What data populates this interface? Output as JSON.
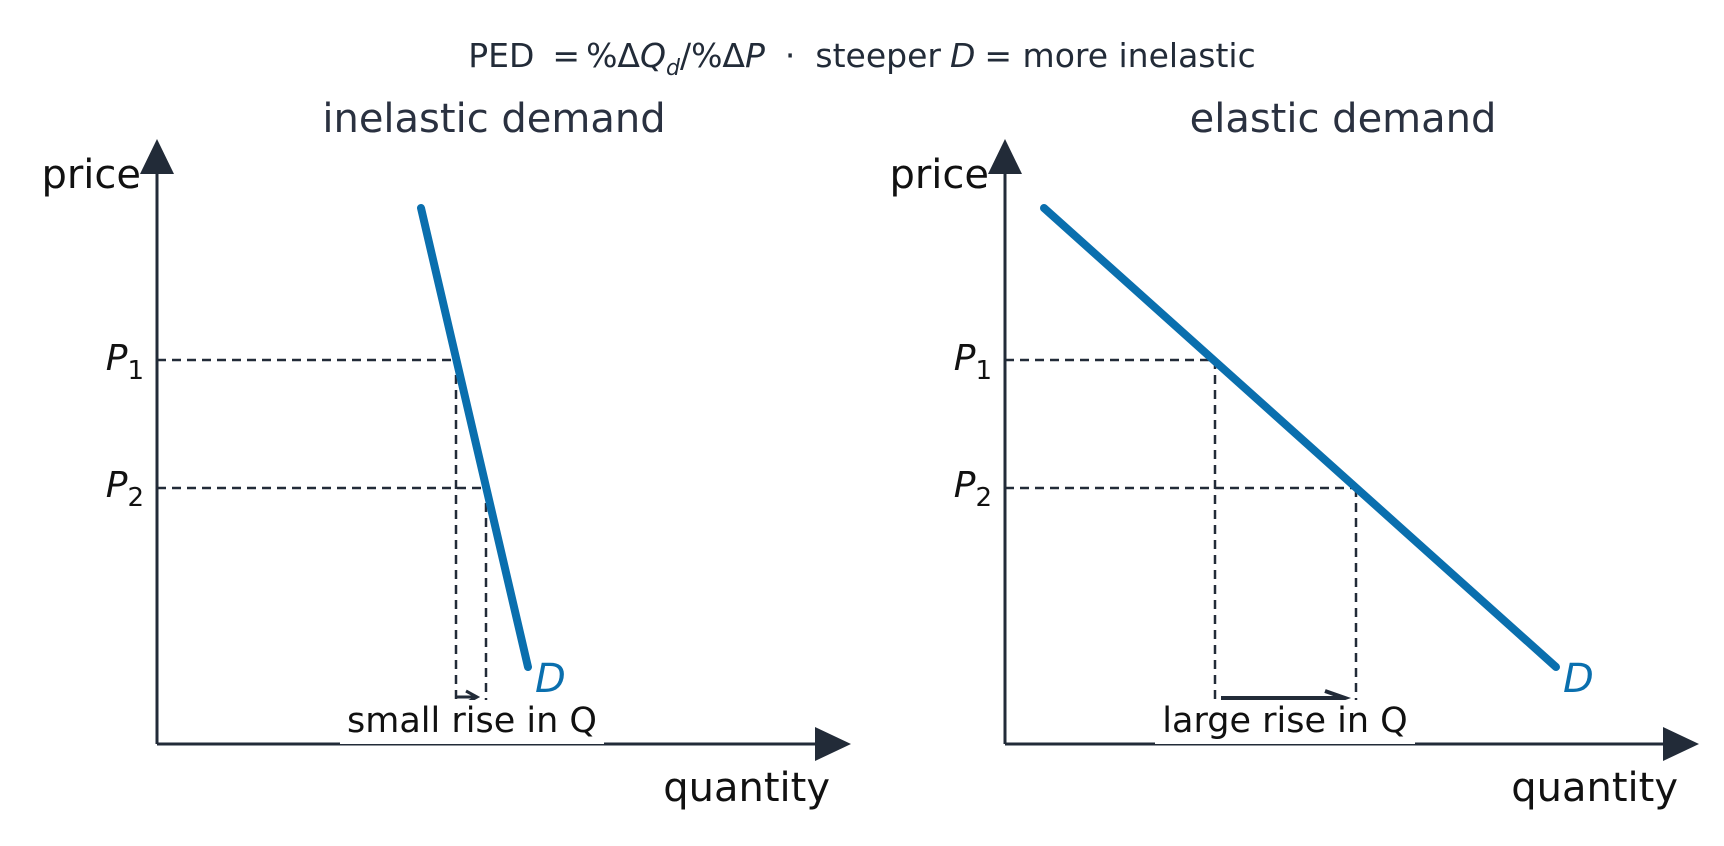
{
  "header": {
    "ped_label": "PED",
    "ped_eq": "=",
    "formula_pct1": "%Δ",
    "formula_q": "Q",
    "formula_sub": "d",
    "formula_slash": "/%Δ",
    "formula_p": "P",
    "separator": "·",
    "tail_steeper": "steeper",
    "tail_d": "D",
    "tail_rest": "= more inelastic"
  },
  "panels": [
    {
      "title": "inelastic demand",
      "y_axis_label": "price",
      "x_axis_label": "quantity",
      "p1_label": "P",
      "p1_sub": "1",
      "p2_label": "P",
      "p2_sub": "2",
      "curve_label": "D",
      "rise_label": "small rise in Q"
    },
    {
      "title": "elastic demand",
      "y_axis_label": "price",
      "x_axis_label": "quantity",
      "p1_label": "P",
      "p1_sub": "1",
      "p2_label": "P",
      "p2_sub": "2",
      "curve_label": "D",
      "rise_label": "large rise in Q"
    }
  ],
  "colors": {
    "axis": "#222b38",
    "curve": "#0a6fae",
    "text": "#111111",
    "title": "#2a3140"
  }
}
